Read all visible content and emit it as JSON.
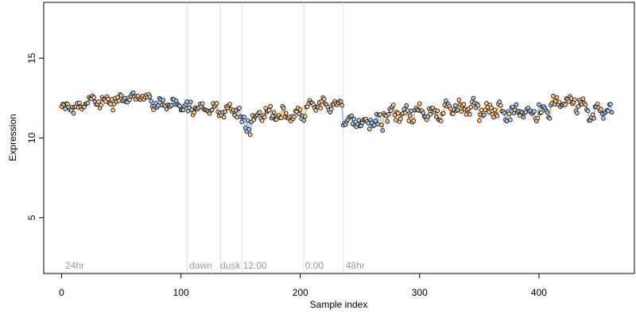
{
  "chart_data": {
    "type": "scatter",
    "title": "",
    "xlabel": "Sample index",
    "ylabel": "Expression",
    "xlim": [
      -15,
      480
    ],
    "ylim": [
      1.5,
      18.5
    ],
    "x_ticks": [
      0,
      100,
      200,
      300,
      400
    ],
    "y_ticks": [
      5,
      10,
      15
    ],
    "x_tick_labels": [
      "0",
      "100",
      "200",
      "300",
      "400"
    ],
    "y_tick_labels": [
      "5",
      "10",
      "15"
    ],
    "grid": false,
    "legend": "none",
    "n_points": 462,
    "marker_colors": {
      "orange": "#ffc98a",
      "blue": "#a8c8f0",
      "line_orange": "#f0b060",
      "line_blue": "#a7bfdd",
      "edge": "#000000"
    },
    "phase_markers": [
      {
        "x": 105,
        "label": "dawn"
      },
      {
        "x": 133,
        "label": "dusk"
      },
      {
        "x": 151,
        "label": "12:00"
      },
      {
        "x": 203,
        "label": "0:00"
      },
      {
        "x": 236,
        "label": "48hr"
      }
    ],
    "phase_annotations": [
      {
        "x": 3,
        "label": "24hr"
      },
      {
        "x": 107,
        "label": "dawn"
      },
      {
        "x": 133,
        "label": "dusk"
      },
      {
        "x": 152,
        "label": "12:00"
      },
      {
        "x": 204,
        "label": "0:00"
      },
      {
        "x": 238,
        "label": "48hr"
      }
    ],
    "segments": [
      {
        "x0": 0,
        "x1": 20,
        "mean": 11.9,
        "amp": 0.25,
        "spread": 0.2,
        "color": "orange"
      },
      {
        "x0": 20,
        "x1": 50,
        "mean": 12.3,
        "amp": 0.35,
        "spread": 0.25,
        "color": "orange"
      },
      {
        "x0": 50,
        "x1": 75,
        "mean": 12.55,
        "amp": 0.25,
        "spread": 0.2,
        "color": "orange"
      },
      {
        "x0": 75,
        "x1": 100,
        "mean": 12.15,
        "amp": 0.25,
        "spread": 0.2,
        "color": "blue"
      },
      {
        "x0": 100,
        "x1": 125,
        "mean": 11.85,
        "amp": 0.3,
        "spread": 0.25,
        "color": "blue"
      },
      {
        "x0": 125,
        "x1": 150,
        "mean": 11.75,
        "amp": 0.35,
        "spread": 0.3,
        "color": "orange"
      },
      {
        "x0": 150,
        "x1": 165,
        "mean": 10.9,
        "amp": 0.45,
        "spread": 0.35,
        "color": "blue"
      },
      {
        "x0": 165,
        "x1": 205,
        "mean": 11.5,
        "amp": 0.4,
        "spread": 0.3,
        "color": "orange"
      },
      {
        "x0": 205,
        "x1": 236,
        "mean": 12.05,
        "amp": 0.3,
        "spread": 0.25,
        "color": "orange"
      },
      {
        "x0": 236,
        "x1": 270,
        "mean": 11.0,
        "amp": 0.45,
        "spread": 0.35,
        "color": "blue"
      },
      {
        "x0": 270,
        "x1": 320,
        "mean": 11.5,
        "amp": 0.45,
        "spread": 0.3,
        "color": "orange"
      },
      {
        "x0": 320,
        "x1": 370,
        "mean": 11.8,
        "amp": 0.5,
        "spread": 0.3,
        "color": "orange"
      },
      {
        "x0": 370,
        "x1": 410,
        "mean": 11.65,
        "amp": 0.45,
        "spread": 0.3,
        "color": "blue"
      },
      {
        "x0": 410,
        "x1": 440,
        "mean": 12.2,
        "amp": 0.45,
        "spread": 0.3,
        "color": "orange"
      },
      {
        "x0": 440,
        "x1": 462,
        "mean": 11.6,
        "amp": 0.4,
        "spread": 0.3,
        "color": "blue"
      }
    ]
  }
}
